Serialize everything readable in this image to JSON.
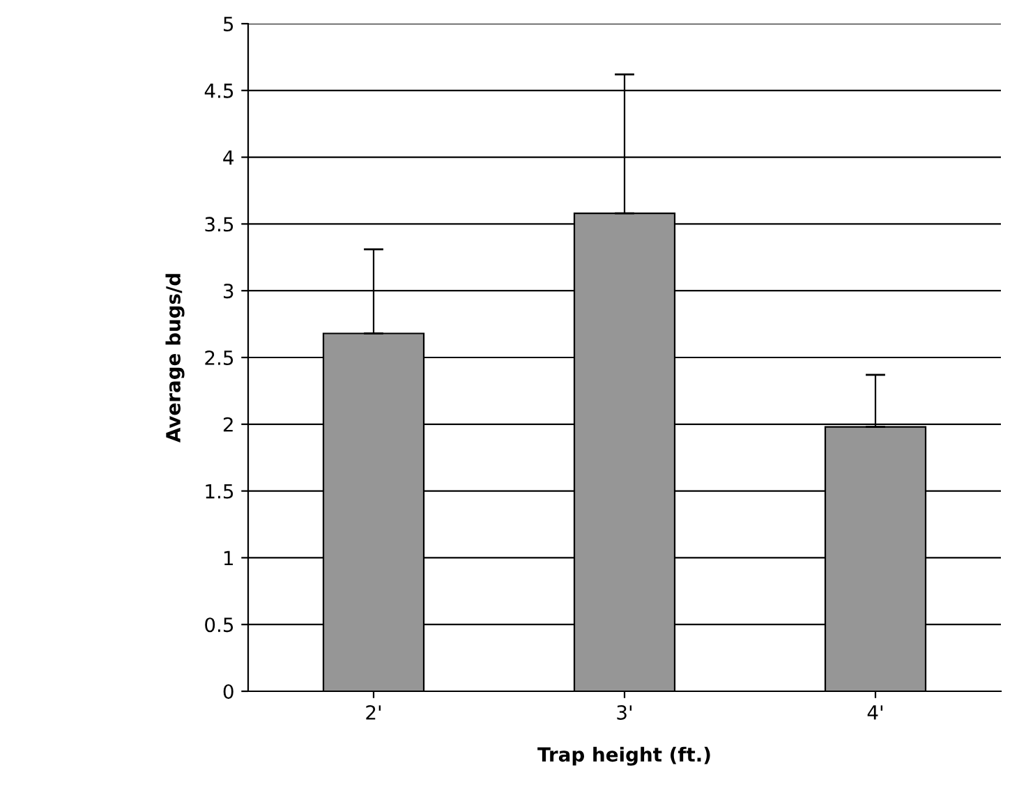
{
  "chart_data": {
    "type": "bar",
    "xlabel": "Trap height (ft.)",
    "ylabel": "Average bugs/d",
    "categories": [
      "2'",
      "3'",
      "4'"
    ],
    "values": [
      2.68,
      3.58,
      1.98
    ],
    "errors": [
      [
        2.68,
        3.31
      ],
      [
        3.58,
        4.62
      ],
      [
        1.98,
        2.37
      ]
    ],
    "color": "#969696",
    "ylim": [
      0,
      5
    ],
    "yticks": [
      0,
      0.5,
      1,
      1.5,
      2,
      2.5,
      3,
      3.5,
      4,
      4.5,
      5
    ],
    "grid": "y"
  }
}
